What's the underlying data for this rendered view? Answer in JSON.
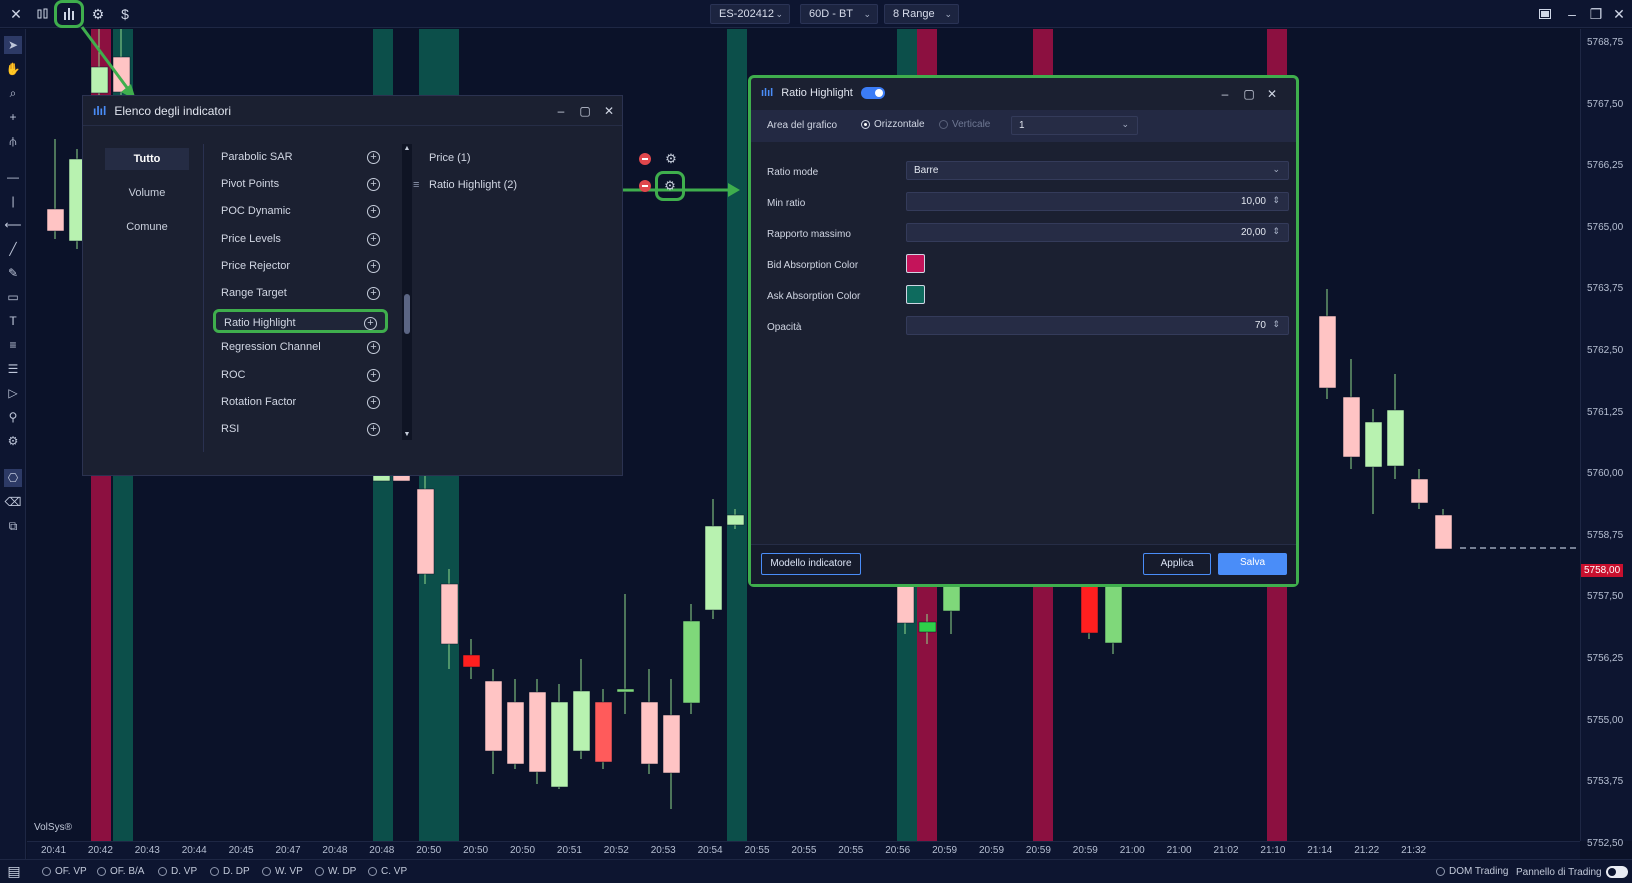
{
  "topbar": {
    "icons": [
      "close-icon",
      "candles-icon",
      "indicators-icon",
      "settings-gear-icon",
      "dollar-icon"
    ],
    "symbol": "ES-202412",
    "timeframe": "60D - BT",
    "chart_type": "8 Range",
    "window_controls": [
      "restore-icon",
      "minimize-icon",
      "maximize-icon",
      "close-icon"
    ]
  },
  "price_axis": {
    "ticks": [
      "5768,75",
      "5767,50",
      "5766,25",
      "5765,00",
      "5763,75",
      "5762,50",
      "5761,25",
      "5760,00",
      "5758,75",
      "5757,50",
      "5756,25",
      "5755,00",
      "5753,75",
      "5752,50"
    ],
    "current_price": "5758,00"
  },
  "time_axis": {
    "ticks": [
      "20:41",
      "20:42",
      "20:43",
      "20:44",
      "20:45",
      "20:47",
      "20:48",
      "20:48",
      "20:50",
      "20:50",
      "20:50",
      "20:51",
      "20:52",
      "20:53",
      "20:54",
      "20:55",
      "20:55",
      "20:55",
      "20:56",
      "20:59",
      "20:59",
      "20:59",
      "20:59",
      "21:00",
      "21:00",
      "21:02",
      "21:10",
      "21:14",
      "21:22",
      "21:32"
    ]
  },
  "watermark": "VolSys®",
  "bottombar": {
    "items": [
      "OF. VP",
      "OF. B/A",
      "D. VP",
      "D. DP",
      "W. VP",
      "W. DP",
      "C. VP"
    ],
    "dom_label": "DOM Trading",
    "panel_label": "Pannello di Trading"
  },
  "indicator_dialog": {
    "title": "Elenco degli indicatori",
    "categories": [
      "Tutto",
      "Volume",
      "Comune"
    ],
    "indicators": [
      "Parabolic SAR",
      "Pivot Points",
      "POC Dynamic",
      "Price Levels",
      "Price Rejector",
      "Range Target",
      "Ratio Highlight",
      "Regression Channel",
      "ROC",
      "Rotation Factor",
      "RSI"
    ],
    "active": [
      "Price (1)",
      "Ratio Highlight (2)"
    ]
  },
  "ratio_dialog": {
    "title": "Ratio Highlight",
    "area_label": "Area del grafico",
    "orientation_h": "Orizzontale",
    "orientation_v": "Verticale",
    "area_value": "1",
    "props": {
      "ratio_mode_label": "Ratio mode",
      "ratio_mode_value": "Barre",
      "min_ratio_label": "Min ratio",
      "min_ratio_value": "10,00",
      "max_ratio_label": "Rapporto massimo",
      "max_ratio_value": "20,00",
      "bid_color_label": "Bid Absorption Color",
      "ask_color_label": "Ask Absorption Color",
      "opacity_label": "Opacità",
      "opacity_value": "70"
    },
    "bid_color": "#c4145a",
    "ask_color": "#0e6b5e",
    "template_button": "Modello indicatore",
    "apply_button": "Applica",
    "save_button": "Salva"
  },
  "colors": {
    "bull_candle": "#b8f2b0",
    "bear_candle": "#ffc4c4",
    "bull_strong": "#7fd87a",
    "bear_strong": "#ff5b5b",
    "ask_band": "#0c4f4a",
    "bid_band": "#8c1040",
    "highlight": "#3fae4d"
  }
}
